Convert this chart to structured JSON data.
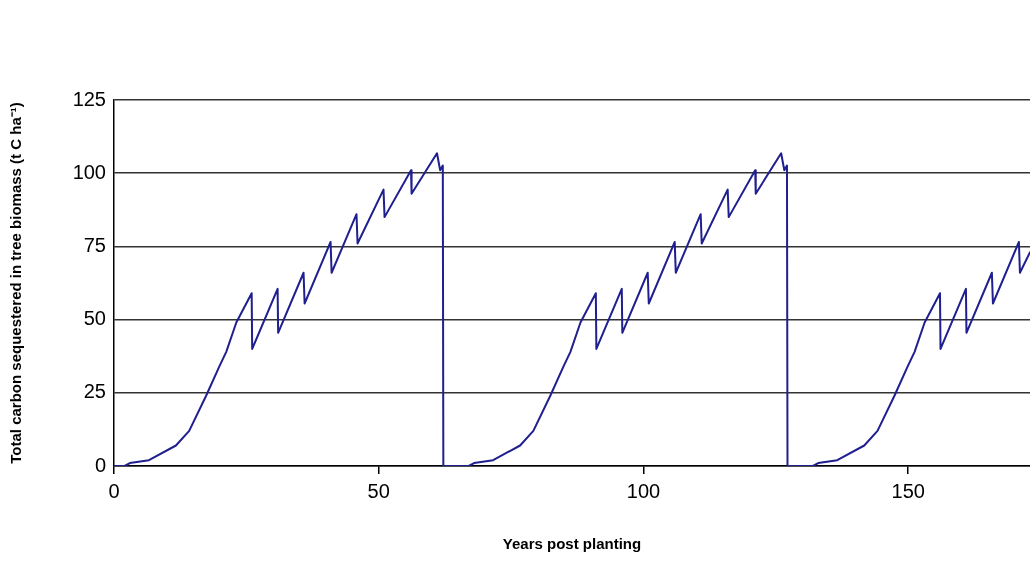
{
  "chart_data": {
    "type": "line",
    "xlabel": "Years post planting",
    "ylabel": "Total carbon sequestered in tree biomass (t C ha⁻¹)",
    "x": [
      0,
      2,
      3,
      6.6,
      11.7,
      14.2,
      17.4,
      19.9,
      21.2,
      23.1,
      26,
      26.1,
      30.9,
      31,
      35.8,
      36,
      40.9,
      41.1,
      45.8,
      46,
      50.9,
      51.1,
      56.1,
      56.2,
      61,
      61.6,
      62.1,
      62.2,
      67,
      68,
      71.6,
      76.7,
      79.2,
      82.4,
      84.9,
      86.2,
      88.1,
      91,
      91.1,
      95.9,
      96,
      100.8,
      101,
      105.9,
      106.1,
      110.8,
      111,
      115.9,
      116.1,
      121.1,
      121.2,
      126,
      126.6,
      127.1,
      127.2,
      132,
      133,
      136.6,
      141.7,
      144.2,
      147.4,
      149.9,
      151.2,
      153.1,
      156,
      156.1,
      160.9,
      161,
      165.8,
      166,
      170.9,
      171.1,
      173
    ],
    "series": [
      {
        "color": "#1f1f8f",
        "values": [
          0,
          0,
          1,
          2,
          7,
          12,
          24,
          34,
          39,
          49,
          59,
          40,
          60.5,
          45.5,
          66,
          55.5,
          76.5,
          66,
          86,
          76,
          94.4,
          85,
          101,
          93,
          106.8,
          101,
          102.6,
          0,
          0,
          1,
          2,
          7,
          12,
          24,
          34,
          39,
          49,
          59,
          40,
          60.5,
          45.5,
          66,
          55.5,
          76.5,
          66,
          86,
          76,
          94.4,
          85,
          101,
          93,
          106.8,
          101,
          102.6,
          0,
          0,
          1,
          2,
          7,
          12,
          24,
          34,
          39,
          49,
          59,
          40,
          60.5,
          45.5,
          66,
          55.5,
          76.5,
          66,
          73
        ]
      }
    ],
    "xlim": [
      0,
      173
    ],
    "xticks": [
      0,
      50,
      100,
      150
    ],
    "ylim": [
      0,
      125
    ],
    "yticks": [
      0,
      25,
      50,
      75,
      100,
      125
    ],
    "grid": "y",
    "legend": false,
    "marker": "none",
    "line_style": "solid"
  }
}
